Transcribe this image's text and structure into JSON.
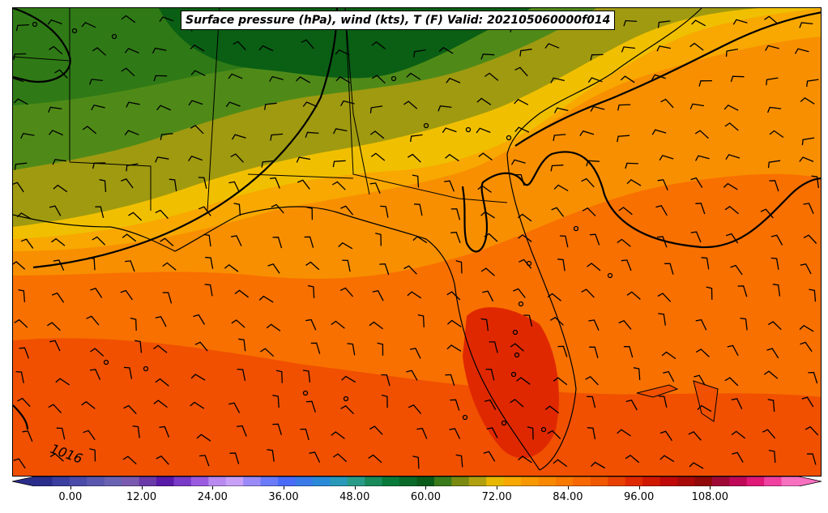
{
  "title": "Surface pressure (hPa), wind (kts), T (F) Valid: 202105060000f014",
  "contour_labels": [
    "1016"
  ],
  "colors": {
    "dark_green": "#0a5f14",
    "green": "#2f7a16",
    "olive_green": "#4f8a18",
    "olive": "#a09a10",
    "yellow": "#f0c000",
    "light_orange": "#f8a800",
    "orange": "#f88f00",
    "deep_orange": "#f87000",
    "red_orange": "#f05000",
    "red": "#e02800"
  },
  "colorbar": {
    "tick_labels": [
      "0.00",
      "12.00",
      "24.00",
      "36.00",
      "48.00",
      "60.00",
      "72.00",
      "84.00",
      "96.00",
      "108.00"
    ],
    "min": -6,
    "max": 123,
    "step": 3,
    "colors": [
      "#2b2d8a",
      "#3a3e9e",
      "#4a4aa8",
      "#5a58ae",
      "#6a62b2",
      "#7a5aae",
      "#6a3aa8",
      "#5a1aa8",
      "#7a3ac8",
      "#9a5ae0",
      "#b88af0",
      "#c8a0f8",
      "#9a8af8",
      "#6a7af8",
      "#4a6af8",
      "#3a7ae8",
      "#2a8ad8",
      "#2a98b8",
      "#2a9a88",
      "#1a8a5a",
      "#0a7a3a",
      "#0a6a2a",
      "#0a5a1a",
      "#3a7a1a",
      "#7a8a10",
      "#b0a010",
      "#e8b800",
      "#f8a800",
      "#f89800",
      "#f88800",
      "#f87800",
      "#f86800",
      "#f05800",
      "#e84000",
      "#e02800",
      "#d01800",
      "#c00808",
      "#a80808",
      "#900808",
      "#a00838",
      "#c00858",
      "#e01878",
      "#f040a0",
      "#f870c0"
    ]
  }
}
